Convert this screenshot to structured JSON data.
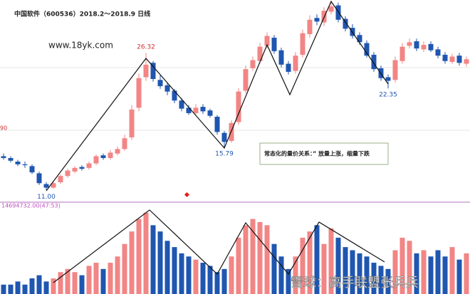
{
  "chart_data": {
    "type": "candlestick",
    "title": "中国软件（600536）2018.2～2018.9 日线",
    "watermark_site": "www.18yk.com",
    "annotation": "常态化的量价关系：” 放量上涨，缩量下跌",
    "edge_label": "90",
    "volume_title": "14694732.00(47:53)",
    "footer_watermark": "雪球：高手联盟张兵兵",
    "up_color": "#f28585",
    "down_color": "#1f56b0",
    "ylim": [
      10,
      32.2
    ],
    "volume_ylim": [
      0,
      28
    ],
    "open": [
      14.8,
      14.6,
      14.2,
      13.9,
      13.7,
      12.9,
      11.7,
      11.3,
      11.9,
      12.6,
      13.1,
      13.6,
      13.5,
      14.0,
      14.9,
      14.6,
      15.1,
      15.6,
      16.9,
      20.2,
      23.6,
      25.2,
      23.3,
      22.7,
      22.1,
      21.0,
      20.2,
      19.6,
      20.3,
      19.9,
      19.2,
      17.4,
      16.5,
      18.6,
      22.1,
      24.6,
      25.4,
      27.1,
      28.0,
      26.6,
      25.1,
      24.3,
      26.1,
      28.4,
      30.2,
      29.7,
      30.9,
      31.6,
      30.1,
      29.1,
      28.3,
      27.4,
      26.1,
      24.6,
      23.6,
      23.3,
      25.4,
      27.1,
      27.6,
      26.7,
      27.3,
      26.7,
      26.1,
      25.3,
      26.0,
      25.1
    ],
    "high": [
      15.1,
      14.8,
      14.4,
      14.2,
      13.9,
      13.1,
      11.9,
      12.0,
      12.8,
      13.4,
      13.7,
      13.8,
      14.2,
      15.0,
      15.1,
      15.5,
      15.9,
      17.2,
      20.5,
      24.0,
      26.32,
      25.4,
      23.8,
      23.0,
      22.3,
      21.3,
      20.5,
      20.6,
      20.6,
      20.1,
      19.4,
      17.6,
      18.8,
      22.4,
      24.9,
      25.9,
      27.4,
      28.6,
      28.3,
      26.9,
      25.4,
      26.4,
      28.9,
      30.5,
      30.6,
      31.4,
      32.1,
      31.9,
      30.4,
      29.5,
      28.6,
      27.7,
      26.4,
      24.9,
      23.9,
      25.9,
      27.4,
      27.9,
      27.9,
      27.6,
      27.6,
      27.0,
      26.4,
      26.2,
      26.3,
      25.9
    ],
    "low": [
      14.4,
      14.1,
      13.7,
      13.5,
      12.8,
      11.6,
      11,
      11.2,
      11.7,
      12.4,
      12.9,
      13.2,
      13.3,
      13.8,
      14.4,
      14.4,
      14.9,
      15.4,
      16.6,
      19.8,
      23.2,
      23.1,
      22.3,
      21.6,
      20.7,
      19.8,
      19.4,
      19.3,
      19.5,
      19.1,
      17.2,
      15.79,
      16.3,
      18.3,
      21.8,
      24.3,
      25.1,
      26.8,
      26.2,
      24.7,
      23.9,
      24.0,
      25.8,
      28.0,
      29.4,
      29.3,
      30.6,
      29.7,
      28.7,
      27.9,
      27.2,
      25.8,
      24.2,
      23.2,
      22.35,
      23.0,
      25.1,
      26.8,
      26.5,
      26.4,
      26.4,
      25.7,
      25.1,
      25.1,
      24.9,
      24.8
    ],
    "close": [
      14.6,
      14.3,
      13.9,
      13.8,
      13.0,
      11.8,
      11.3,
      11.8,
      12.6,
      13.2,
      13.5,
      13.4,
      14.0,
      14.8,
      14.6,
      15.2,
      15.6,
      16.8,
      20.0,
      23.5,
      25.0,
      23.4,
      22.6,
      22.0,
      21.0,
      20.1,
      19.6,
      20.2,
      19.8,
      19.3,
      17.5,
      16.4,
      18.5,
      22.0,
      24.5,
      25.5,
      27.0,
      28.2,
      26.5,
      25.0,
      24.2,
      26.0,
      28.5,
      30.0,
      29.8,
      31.0,
      31.5,
      30.0,
      29.0,
      28.2,
      27.5,
      26.0,
      24.5,
      23.5,
      23.2,
      25.5,
      27.0,
      27.5,
      26.8,
      27.2,
      26.6,
      26.0,
      25.4,
      25.9,
      25.2,
      25.6
    ],
    "volume": [
      3,
      3,
      4,
      3,
      5,
      6,
      4,
      5,
      7,
      8,
      7,
      6,
      9,
      10,
      8,
      10,
      12,
      16,
      20,
      24,
      26,
      22,
      20,
      17,
      15,
      13,
      12,
      11,
      10,
      9,
      7,
      8,
      12,
      18,
      22,
      24,
      23,
      22,
      16,
      12,
      8,
      12,
      18,
      20,
      22,
      16,
      21,
      18,
      15,
      14,
      13,
      12,
      10,
      9,
      8,
      14,
      18,
      17,
      13,
      14,
      12,
      14,
      12,
      15,
      11,
      13
    ],
    "high_labels": [
      null,
      null,
      null,
      null,
      null,
      null,
      null,
      null,
      null,
      null,
      null,
      null,
      null,
      null,
      null,
      null,
      null,
      null,
      null,
      null,
      "26.32",
      null,
      null,
      null,
      null,
      null,
      null,
      null,
      null,
      null,
      null,
      null,
      null,
      null,
      null,
      null,
      null,
      null,
      null,
      null,
      null,
      null,
      null,
      null,
      null,
      null,
      null,
      null,
      null,
      null,
      null,
      null,
      null,
      null,
      null,
      null,
      null,
      null,
      null,
      null,
      null,
      null,
      null,
      null,
      null,
      null
    ],
    "low_labels": [
      null,
      null,
      null,
      null,
      null,
      null,
      "11.00",
      null,
      null,
      null,
      null,
      null,
      null,
      null,
      null,
      null,
      null,
      null,
      null,
      null,
      null,
      null,
      null,
      null,
      null,
      null,
      null,
      null,
      null,
      null,
      null,
      "15.79",
      null,
      null,
      null,
      null,
      null,
      null,
      null,
      null,
      null,
      null,
      null,
      null,
      null,
      null,
      null,
      null,
      null,
      null,
      null,
      null,
      null,
      null,
      "22.35",
      null,
      null,
      null,
      null,
      null,
      null,
      null,
      null,
      null,
      null,
      null
    ]
  }
}
